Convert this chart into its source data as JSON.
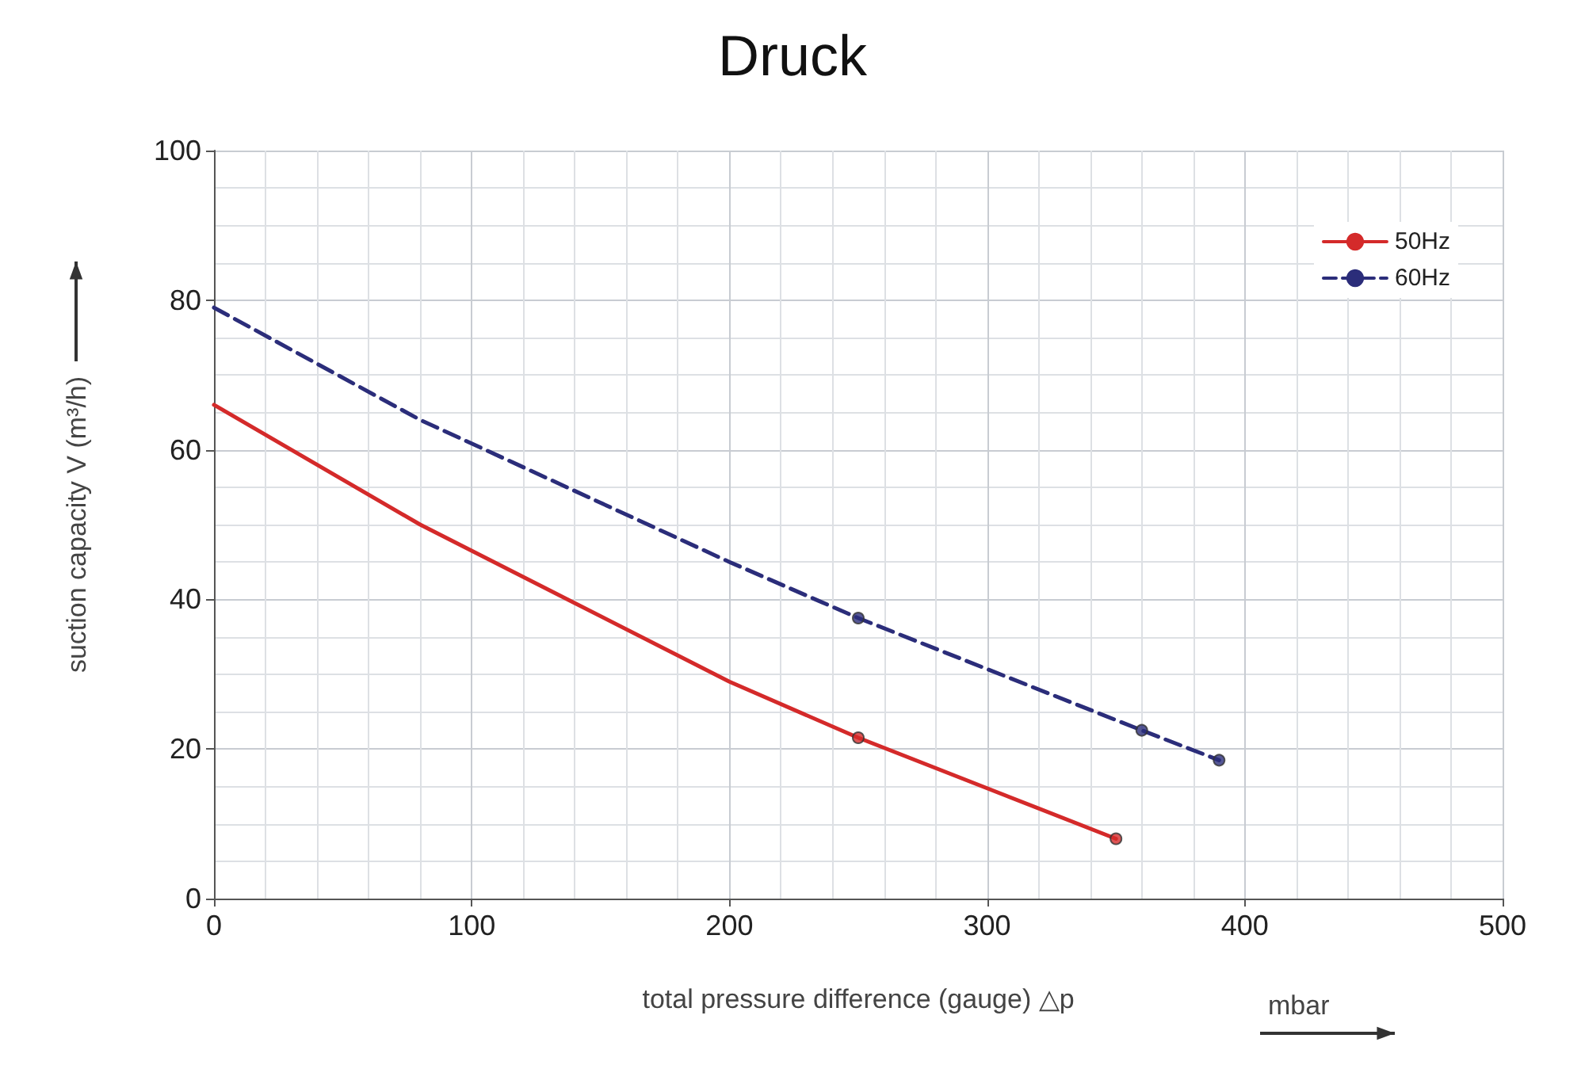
{
  "chart_data": {
    "type": "line",
    "title": "Druck",
    "xlabel": "total pressure difference (gauge) △p",
    "ylabel": "suction capacity V (m³/h)",
    "annotations": [
      "mbar"
    ],
    "xlim": [
      0,
      500
    ],
    "xticks": [
      0,
      100,
      200,
      300,
      400,
      500
    ],
    "ylim": [
      0,
      100
    ],
    "yticks": [
      0,
      20,
      40,
      60,
      80,
      100
    ],
    "grid": true,
    "legend": "top right",
    "marker": "none",
    "series": [
      {
        "name": "50Hz",
        "color": "#d42a2a",
        "line_style": "solid",
        "x": [
          0,
          80,
          200,
          250,
          350
        ],
        "values": [
          66,
          50,
          29,
          21.5,
          8
        ]
      },
      {
        "name": "60Hz",
        "color": "#2b2d7a",
        "line_style": "dashed",
        "x": [
          0,
          80,
          200,
          250,
          360,
          390
        ],
        "values": [
          79,
          64,
          45,
          37.5,
          22.5,
          18.5
        ]
      },
      {
        "type": "scatter",
        "color": "#d42a2a",
        "marker": "circle",
        "x": [
          250,
          350
        ],
        "values": [
          21.5,
          8
        ]
      },
      {
        "type": "scatter",
        "color": "#2b2d7a",
        "marker": "circle",
        "x": [
          250,
          360,
          390
        ],
        "values": [
          37.5,
          22.5,
          18.5
        ]
      }
    ]
  }
}
